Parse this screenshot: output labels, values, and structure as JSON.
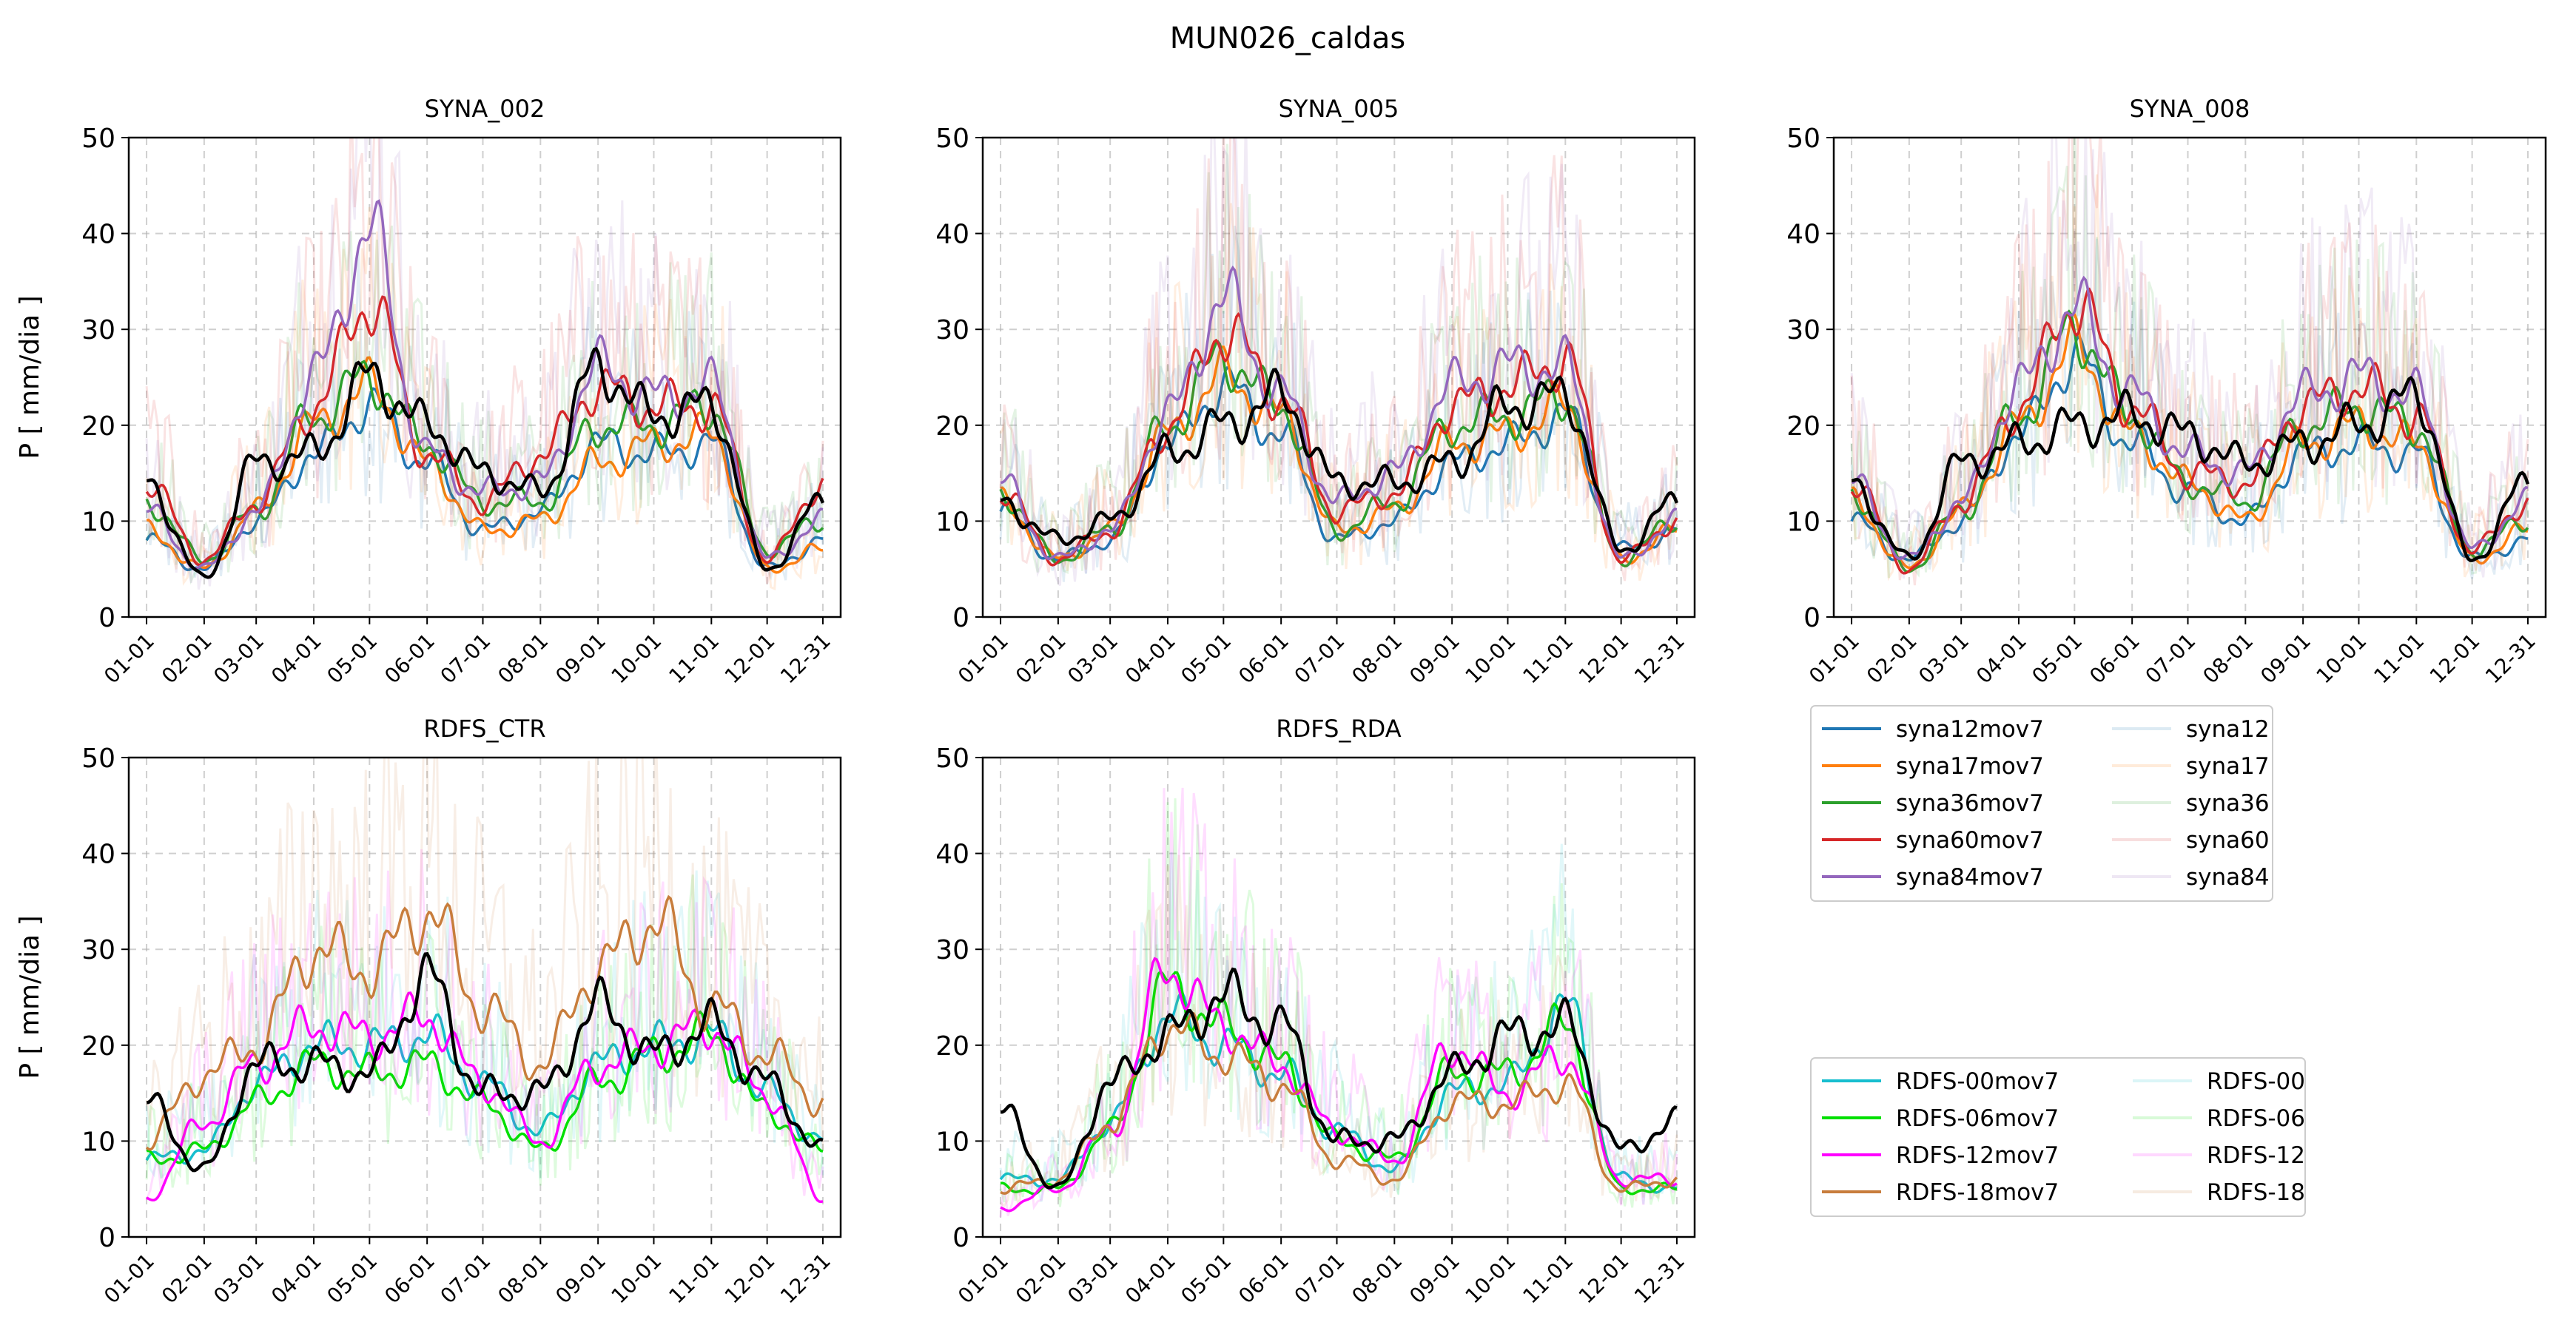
{
  "figure": {
    "title": "MUN026_caldas"
  },
  "month_ticks": [
    "01-01",
    "02-01",
    "03-01",
    "04-01",
    "05-01",
    "06-01",
    "07-01",
    "08-01",
    "09-01",
    "10-01",
    "11-01",
    "12-01",
    "12-31"
  ],
  "y_ticks": [
    "0",
    "10",
    "20",
    "30",
    "40",
    "50"
  ],
  "ylabel": "P [ mm/dia ]",
  "colors": {
    "syna12": "#1f77b4",
    "syna17": "#ff7f0e",
    "syna36": "#2ca02c",
    "syna60": "#d62728",
    "syna84": "#9467bd",
    "rdfs00": "#17becf",
    "rdfs06": "#00e000",
    "rdfs12": "#ff00ff",
    "rdfs18": "#c87d3c",
    "obs": "#000000"
  },
  "legends": {
    "syna": {
      "col1": [
        "syna12mov7",
        "syna17mov7",
        "syna36mov7",
        "syna60mov7",
        "syna84mov7"
      ],
      "col2": [
        "syna12",
        "syna17",
        "syna36",
        "syna60",
        "syna84"
      ]
    },
    "rdfs": {
      "col1": [
        "RDFS-00mov7",
        "RDFS-06mov7",
        "RDFS-12mov7",
        "RDFS-18mov7"
      ],
      "col2": [
        "RDFS-00",
        "RDFS-06",
        "RDFS-12",
        "RDFS-18"
      ]
    }
  },
  "chart_data": [
    {
      "type": "line",
      "title": "SYNA_002",
      "ylabel": "P [ mm/dia ]",
      "ylim": [
        0,
        50
      ],
      "grid": true,
      "x": [
        "01-01",
        "02-01",
        "03-01",
        "04-01",
        "05-01",
        "06-01",
        "07-01",
        "08-01",
        "09-01",
        "10-01",
        "11-01",
        "12-01",
        "12-31"
      ],
      "series": [
        {
          "name": "syna12mov7",
          "values": [
            8,
            5,
            10,
            17,
            22,
            16,
            9,
            11,
            18,
            17,
            18,
            5,
            8
          ]
        },
        {
          "name": "syna17mov7",
          "values": [
            9,
            5,
            11,
            20,
            24,
            16,
            9,
            10,
            16,
            18,
            19,
            5,
            7
          ]
        },
        {
          "name": "syna36mov7",
          "values": [
            12,
            6,
            11,
            21,
            25,
            18,
            12,
            12,
            20,
            20,
            22,
            7,
            10
          ]
        },
        {
          "name": "syna60mov7",
          "values": [
            14,
            6,
            12,
            22,
            33,
            17,
            12,
            17,
            24,
            22,
            22,
            6,
            14
          ]
        },
        {
          "name": "syna84mov7",
          "values": [
            11,
            5,
            11,
            25,
            40,
            17,
            13,
            14,
            26,
            23,
            24,
            6,
            10
          ]
        },
        {
          "name": "obs",
          "values": [
            14,
            4,
            16,
            17,
            25,
            20,
            15,
            13,
            26,
            21,
            22,
            5,
            12
          ]
        }
      ]
    },
    {
      "type": "line",
      "title": "SYNA_005",
      "ylim": [
        0,
        50
      ],
      "grid": true,
      "x": [
        "01-01",
        "02-01",
        "03-01",
        "04-01",
        "05-01",
        "06-01",
        "07-01",
        "08-01",
        "09-01",
        "10-01",
        "11-01",
        "12-01",
        "12-31"
      ],
      "series": [
        {
          "name": "syna12mov7",
          "values": [
            11,
            6,
            8,
            18,
            24,
            19,
            8,
            10,
            16,
            18,
            21,
            7,
            9
          ]
        },
        {
          "name": "syna17mov7",
          "values": [
            12,
            6,
            9,
            19,
            25,
            21,
            9,
            11,
            18,
            19,
            22,
            6,
            9
          ]
        },
        {
          "name": "syna36mov7",
          "values": [
            13,
            6,
            9,
            20,
            27,
            22,
            9,
            12,
            20,
            21,
            23,
            6,
            10
          ]
        },
        {
          "name": "syna60mov7",
          "values": [
            13,
            6,
            9,
            20,
            30,
            23,
            11,
            13,
            22,
            24,
            27,
            6,
            10
          ]
        },
        {
          "name": "syna84mov7",
          "values": [
            14,
            6,
            9,
            21,
            33,
            23,
            12,
            15,
            24,
            26,
            26,
            6,
            10
          ]
        },
        {
          "name": "obs",
          "values": [
            12,
            8,
            10,
            17,
            20,
            23,
            14,
            14,
            16,
            22,
            23,
            7,
            12
          ]
        }
      ]
    },
    {
      "type": "line",
      "title": "SYNA_008",
      "ylim": [
        0,
        50
      ],
      "grid": true,
      "x": [
        "01-01",
        "02-01",
        "03-01",
        "04-01",
        "05-01",
        "06-01",
        "07-01",
        "08-01",
        "09-01",
        "10-01",
        "11-01",
        "12-01",
        "12-31"
      ],
      "series": [
        {
          "name": "syna12mov7",
          "values": [
            10,
            6,
            10,
            19,
            27,
            18,
            13,
            10,
            17,
            18,
            17,
            6,
            8
          ]
        },
        {
          "name": "syna17mov7",
          "values": [
            12,
            5,
            11,
            20,
            28,
            19,
            14,
            10,
            18,
            20,
            18,
            6,
            9
          ]
        },
        {
          "name": "syna36mov7",
          "values": [
            13,
            5,
            11,
            21,
            30,
            21,
            14,
            12,
            20,
            22,
            20,
            7,
            10
          ]
        },
        {
          "name": "syna60mov7",
          "values": [
            14,
            5,
            12,
            22,
            33,
            22,
            15,
            14,
            22,
            24,
            21,
            7,
            12
          ]
        },
        {
          "name": "syna84mov7",
          "values": [
            14,
            6,
            12,
            24,
            32,
            23,
            17,
            15,
            23,
            25,
            23,
            7,
            12
          ]
        },
        {
          "name": "obs",
          "values": [
            14,
            6,
            16,
            18,
            20,
            21,
            19,
            16,
            18,
            20,
            23,
            6,
            14
          ]
        }
      ]
    },
    {
      "type": "line",
      "title": "RDFS_CTR",
      "ylabel": "P [ mm/dia ]",
      "ylim": [
        0,
        50
      ],
      "grid": true,
      "x": [
        "01-01",
        "02-01",
        "03-01",
        "04-01",
        "05-01",
        "06-01",
        "07-01",
        "08-01",
        "09-01",
        "10-01",
        "11-01",
        "12-01",
        "12-31"
      ],
      "series": [
        {
          "name": "RDFS-00mov7",
          "values": [
            8,
            9,
            16,
            20,
            20,
            21,
            16,
            11,
            18,
            20,
            21,
            15,
            10
          ]
        },
        {
          "name": "RDFS-06mov7",
          "values": [
            8,
            9,
            14,
            18,
            17,
            18,
            14,
            9,
            16,
            19,
            21,
            13,
            9
          ]
        },
        {
          "name": "RDFS-12mov7",
          "values": [
            4,
            12,
            18,
            22,
            21,
            23,
            16,
            10,
            18,
            20,
            22,
            15,
            4
          ]
        },
        {
          "name": "RDFS-18mov7",
          "values": [
            10,
            17,
            20,
            30,
            28,
            34,
            24,
            18,
            28,
            33,
            24,
            19,
            14
          ]
        },
        {
          "name": "obs",
          "values": [
            14,
            7,
            18,
            18,
            17,
            27,
            15,
            15,
            24,
            19,
            22,
            16,
            9
          ]
        }
      ]
    },
    {
      "type": "line",
      "title": "RDFS_RDA",
      "ylim": [
        0,
        50
      ],
      "grid": true,
      "x": [
        "01-01",
        "02-01",
        "03-01",
        "04-01",
        "05-01",
        "06-01",
        "07-01",
        "08-01",
        "09-01",
        "10-01",
        "11-01",
        "12-01",
        "12-31"
      ],
      "series": [
        {
          "name": "RDFS-00mov7",
          "values": [
            6,
            6,
            12,
            23,
            20,
            17,
            11,
            7,
            15,
            16,
            24,
            6,
            5
          ]
        },
        {
          "name": "RDFS-06mov7",
          "values": [
            5,
            5,
            11,
            26,
            22,
            18,
            10,
            8,
            17,
            17,
            22,
            5,
            5
          ]
        },
        {
          "name": "RDFS-12mov7",
          "values": [
            3,
            5,
            11,
            28,
            22,
            18,
            11,
            8,
            20,
            15,
            19,
            6,
            6
          ]
        },
        {
          "name": "RDFS-18mov7",
          "values": [
            5,
            6,
            12,
            22,
            19,
            16,
            8,
            6,
            14,
            14,
            16,
            5,
            6
          ]
        },
        {
          "name": "obs",
          "values": [
            13,
            5,
            16,
            21,
            25,
            22,
            10,
            10,
            17,
            21,
            22,
            9,
            12
          ]
        }
      ]
    }
  ]
}
